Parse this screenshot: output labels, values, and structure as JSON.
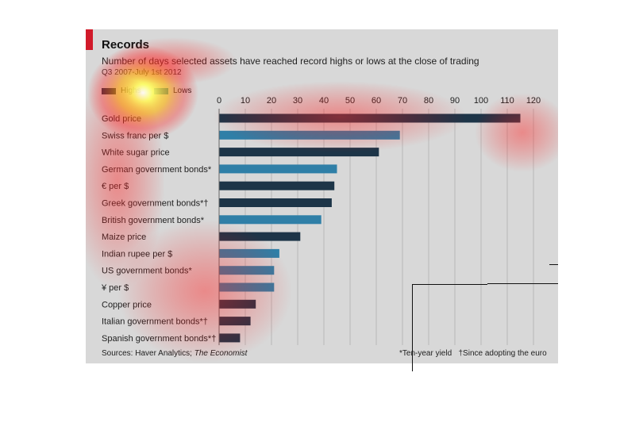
{
  "title": "Records",
  "subtitle": "Number of days selected assets have reached record highs or lows at the close of trading",
  "period": "Q3 2007-July 1st 2012",
  "legend": {
    "highs": "Highs",
    "lows": "Lows"
  },
  "source_prefix": "Sources: Haver Analytics; ",
  "source_italic": "The Economist",
  "footnote_yield": "*Ten-year yield",
  "footnote_euro": "†Since adopting the euro",
  "colors": {
    "dark_bar": "#1d3548",
    "light_bar": "#2f7fa7",
    "background": "#d8d8d8",
    "accent": "#d11a2a"
  },
  "chart_data": {
    "type": "bar",
    "orientation": "horizontal",
    "stacked": true,
    "grid": true,
    "xlim": [
      0,
      120
    ],
    "xticks": [
      "0",
      "10",
      "20",
      "30",
      "40",
      "50",
      "60",
      "70",
      "80",
      "90",
      "100",
      "110",
      "120"
    ],
    "categories": [
      "Gold price",
      "Swiss franc per $",
      "White sugar price",
      "German government bonds*",
      "€ per $",
      "Greek government bonds*†",
      "British government bonds*",
      "Maize price",
      "Indian rupee per $",
      "US government bonds*",
      "¥ per $",
      "Copper price",
      "Italian government bonds*†",
      "Spanish government bonds*†"
    ],
    "series": [
      {
        "name": "Highs",
        "values": [
          115,
          0,
          61,
          0,
          44,
          43,
          0,
          31,
          0,
          0,
          0,
          14,
          12,
          8
        ]
      },
      {
        "name": "Lows",
        "values": [
          0,
          69,
          0,
          45,
          0,
          0,
          39,
          0,
          23,
          21,
          21,
          0,
          0,
          0
        ]
      }
    ]
  }
}
